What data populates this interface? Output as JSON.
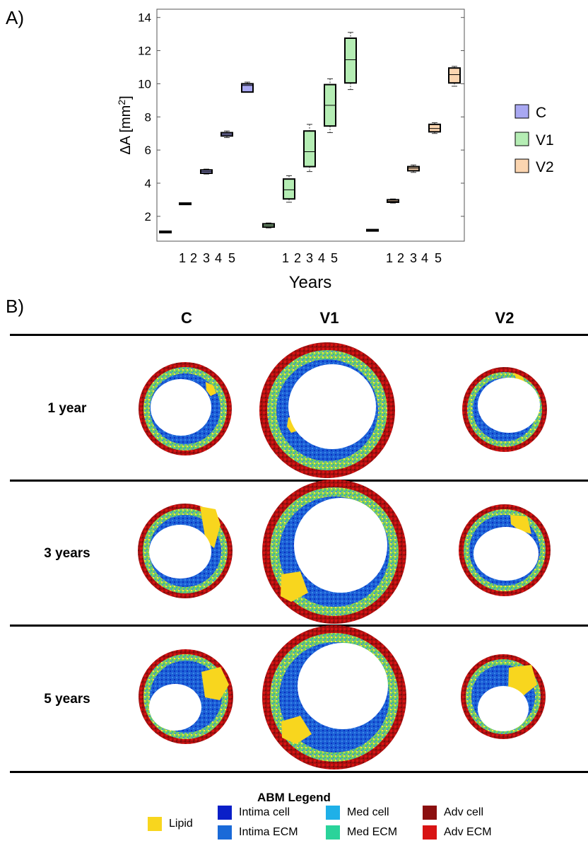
{
  "panel_a_label": "A)",
  "panel_b_label": "B)",
  "chart_data": {
    "type": "box",
    "ylabel": "ΔA [mm²]",
    "xlabel": "Years",
    "ylim": [
      0.5,
      14.5
    ],
    "yticks": [
      2,
      4,
      6,
      8,
      10,
      12,
      14
    ],
    "tick_labels": [
      "1",
      "2",
      "3",
      "4",
      "5"
    ],
    "legend_position": "right",
    "series": [
      {
        "name": "C",
        "color": "#a9a8f2",
        "boxes": [
          {
            "year": "1",
            "min": 1.1,
            "q1": 1.1,
            "median": 1.1,
            "q3": 1.1,
            "max": 1.1
          },
          {
            "year": "2",
            "min": 2.8,
            "q1": 2.8,
            "median": 2.8,
            "q3": 2.8,
            "max": 2.8
          },
          {
            "year": "3",
            "min": 4.55,
            "q1": 4.6,
            "median": 4.7,
            "q3": 4.8,
            "max": 4.85
          },
          {
            "year": "4",
            "min": 6.75,
            "q1": 6.85,
            "median": 6.95,
            "q3": 7.05,
            "max": 7.15
          },
          {
            "year": "5",
            "min": 9.5,
            "q1": 9.5,
            "median": 9.9,
            "q3": 10.0,
            "max": 10.1
          }
        ]
      },
      {
        "name": "V1",
        "color": "#b5edb4",
        "boxes": [
          {
            "year": "1",
            "min": 1.3,
            "q1": 1.35,
            "median": 1.45,
            "q3": 1.55,
            "max": 1.6
          },
          {
            "year": "2",
            "min": 2.85,
            "q1": 3.05,
            "median": 3.6,
            "q3": 4.25,
            "max": 4.45
          },
          {
            "year": "3",
            "min": 4.7,
            "q1": 5.0,
            "median": 5.9,
            "q3": 7.15,
            "max": 7.55
          },
          {
            "year": "4",
            "min": 7.05,
            "q1": 7.45,
            "median": 8.7,
            "q3": 9.95,
            "max": 10.3
          },
          {
            "year": "5",
            "min": 9.65,
            "q1": 10.05,
            "median": 11.45,
            "q3": 12.75,
            "max": 13.1
          }
        ]
      },
      {
        "name": "V2",
        "color": "#fbd5b0",
        "boxes": [
          {
            "year": "1",
            "min": 1.2,
            "q1": 1.2,
            "median": 1.2,
            "q3": 1.2,
            "max": 1.2
          },
          {
            "year": "2",
            "min": 2.8,
            "q1": 2.85,
            "median": 2.9,
            "q3": 3.0,
            "max": 3.05
          },
          {
            "year": "3",
            "min": 4.65,
            "q1": 4.75,
            "median": 4.9,
            "q3": 5.0,
            "max": 5.1
          },
          {
            "year": "4",
            "min": 7.0,
            "q1": 7.1,
            "median": 7.3,
            "q3": 7.55,
            "max": 7.65
          },
          {
            "year": "5",
            "min": 9.85,
            "q1": 10.05,
            "median": 10.55,
            "q3": 10.95,
            "max": 11.05
          }
        ]
      }
    ]
  },
  "grid": {
    "columns": [
      "C",
      "V1",
      "V2"
    ],
    "rows": [
      "1 year",
      "3 years",
      "5 years"
    ]
  },
  "abm_legend": {
    "title": "ABM Legend",
    "items": [
      {
        "label": "Lipid",
        "color": "#f8d61e"
      },
      {
        "label": "Intima cell",
        "color": "#0a1fc8"
      },
      {
        "label": "Intima ECM",
        "color": "#1a6ad8"
      },
      {
        "label": "Med cell",
        "color": "#1fb0e8"
      },
      {
        "label": "Med ECM",
        "color": "#2ad39a"
      },
      {
        "label": "Adv cell",
        "color": "#8b0f0f"
      },
      {
        "label": "Adv ECM",
        "color": "#d81414"
      }
    ]
  }
}
